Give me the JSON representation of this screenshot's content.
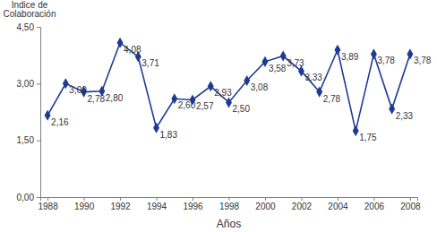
{
  "chart_data": {
    "type": "line",
    "y_label": "Indice de Colaboración",
    "x_label": "Años",
    "x": [
      1988,
      1989,
      1990,
      1991,
      1992,
      1993,
      1994,
      1995,
      1996,
      1997,
      1998,
      1999,
      2000,
      2001,
      2002,
      2003,
      2004,
      2005,
      2006,
      2007,
      2008
    ],
    "values": [
      2.16,
      3.0,
      2.78,
      2.8,
      4.08,
      3.71,
      1.83,
      2.6,
      2.57,
      2.93,
      2.5,
      3.08,
      3.58,
      3.73,
      3.33,
      2.78,
      3.89,
      1.75,
      3.78,
      2.33,
      3.78
    ],
    "value_labels": [
      "2,16",
      "3,00",
      "2,78",
      "2,80",
      "4,08",
      "3,71",
      "1,83",
      "2,60",
      "2,57",
      "2,93",
      "2,50",
      "3,08",
      "3,58",
      "3,73",
      "3,33",
      "2,78",
      "3,89",
      "1,75",
      "3,78",
      "2,33",
      "3,78"
    ],
    "color": "#1f3a93",
    "marker": "diamond",
    "data_labels": true,
    "grid": false,
    "xlim": [
      1987.6,
      2008.4
    ],
    "xticks": [
      1988,
      1990,
      1992,
      1994,
      1996,
      1998,
      2000,
      2002,
      2004,
      2006,
      2008
    ],
    "ylim": [
      0,
      4.5
    ],
    "yticks": [
      {
        "value": 0,
        "label": "0,00"
      },
      {
        "value": 1.5,
        "label": "1,50"
      },
      {
        "value": 3,
        "label": "3,00"
      },
      {
        "value": 4.5,
        "label": "4,50"
      }
    ]
  }
}
